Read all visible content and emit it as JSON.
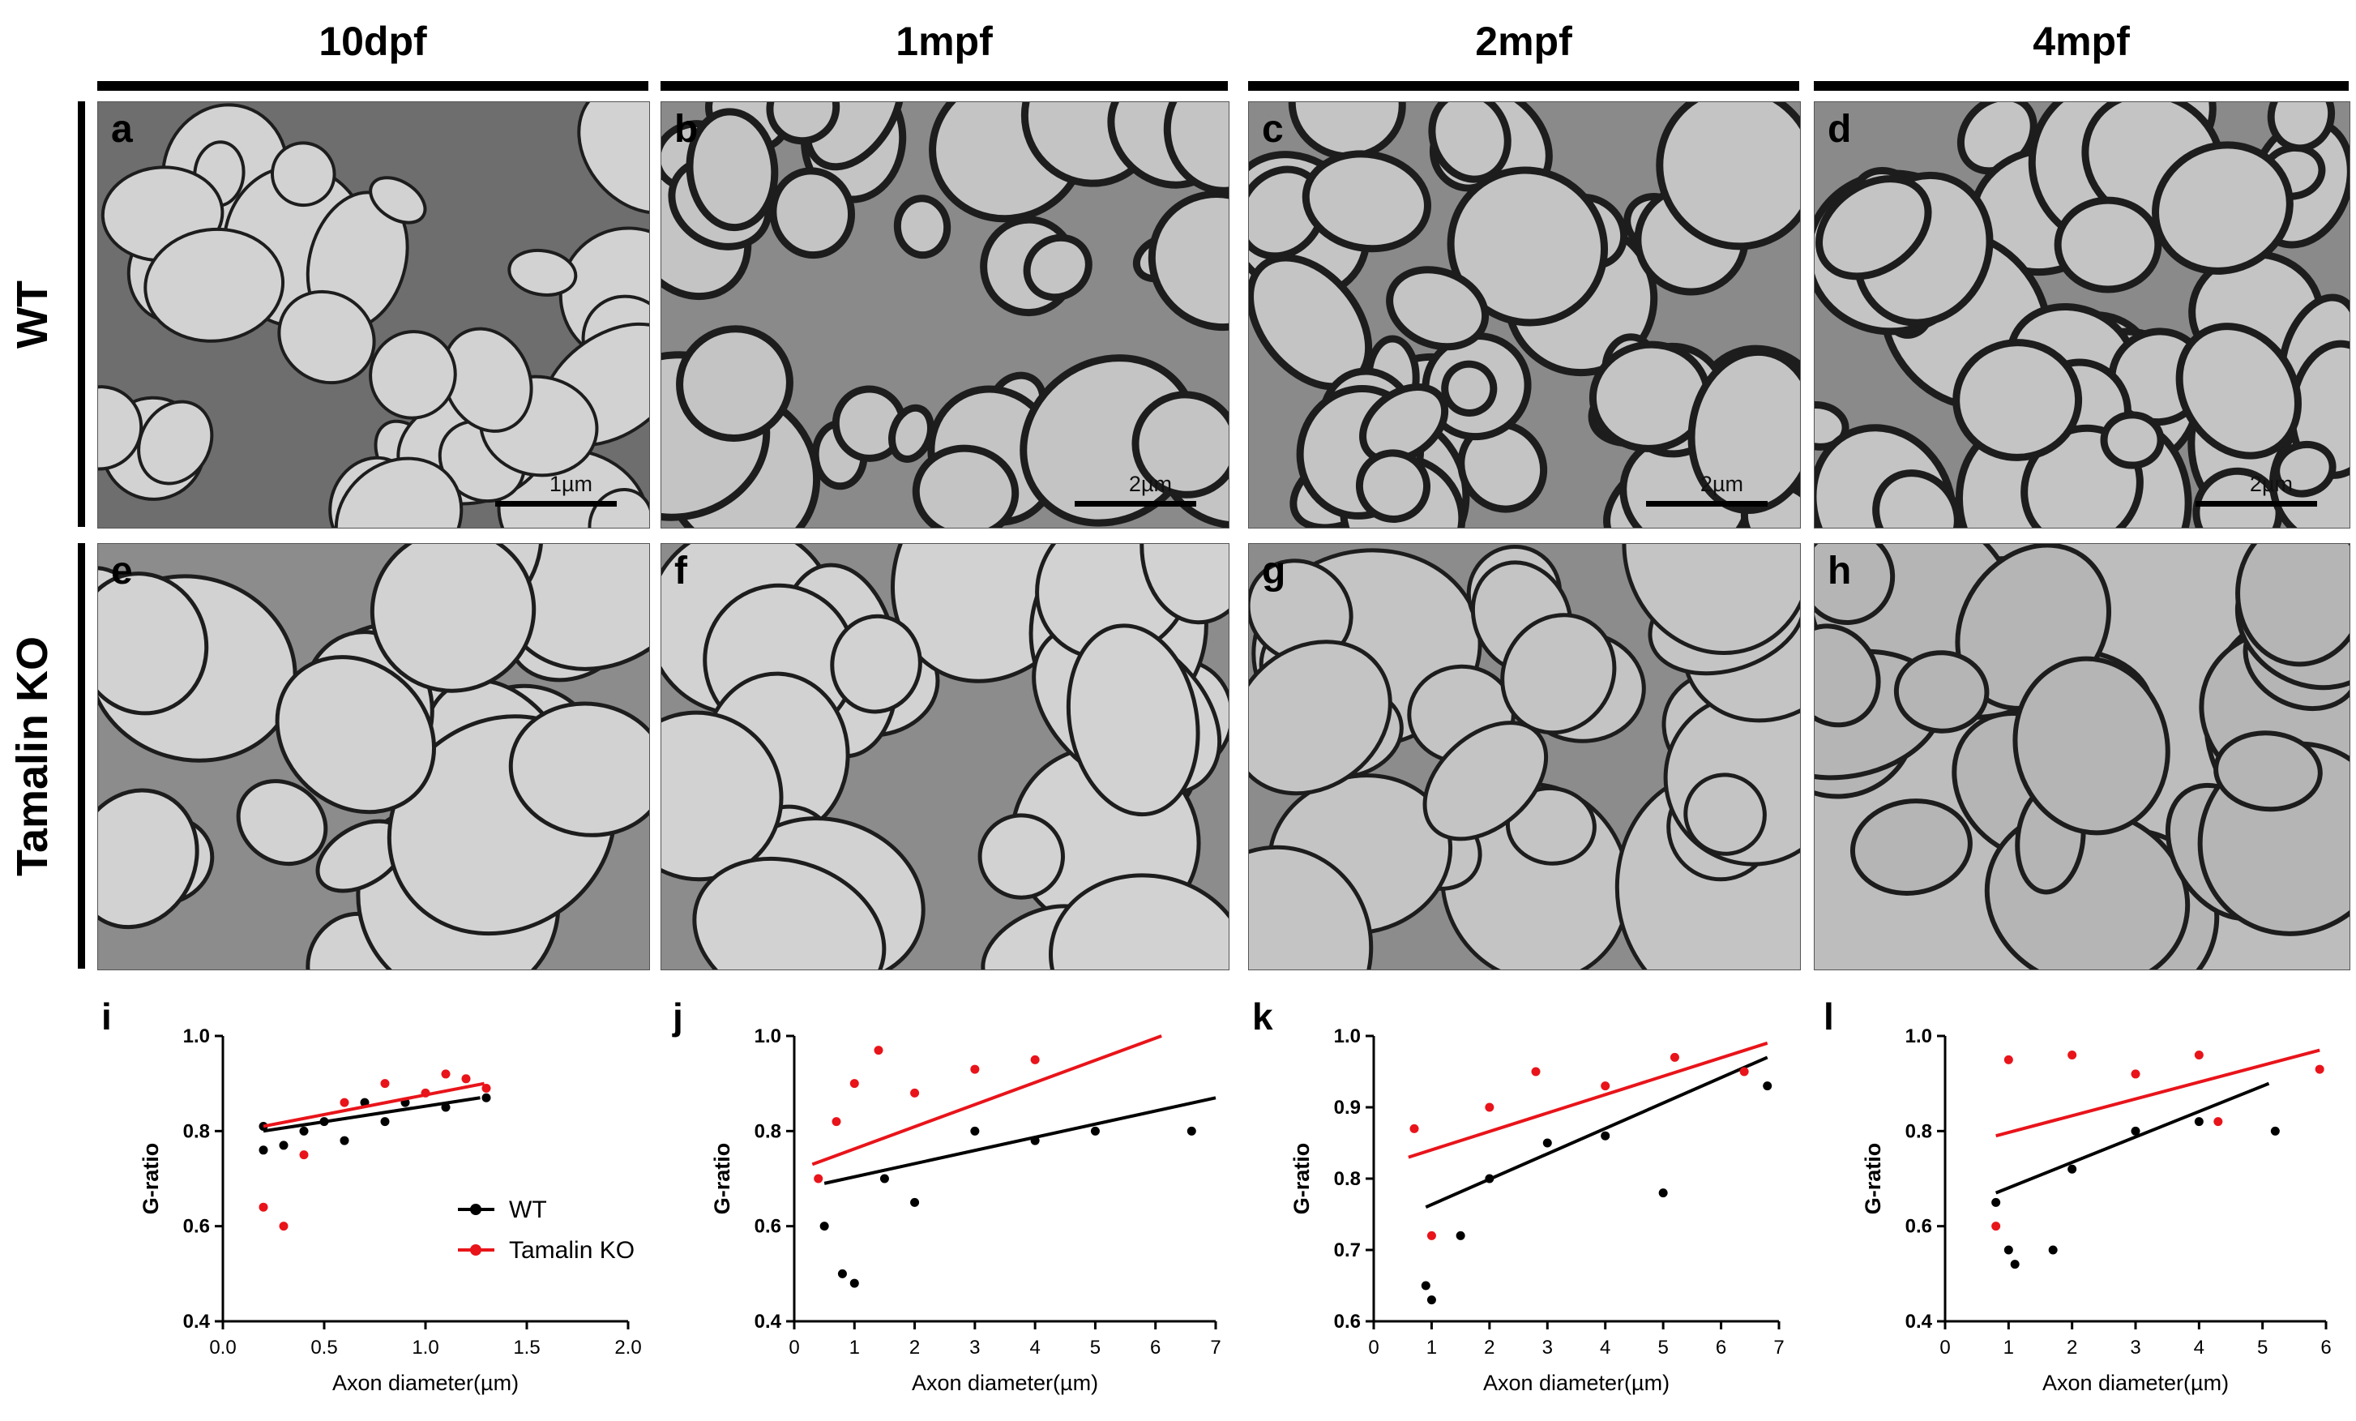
{
  "column_titles": [
    "10dpf",
    "1mpf",
    "2mpf",
    "4mpf"
  ],
  "row_labels": {
    "wt": "WT",
    "ko": "Tamalin KO"
  },
  "em_panels": [
    {
      "letter": "a",
      "scale": "1µm"
    },
    {
      "letter": "b",
      "scale": "2µm"
    },
    {
      "letter": "c",
      "scale": "2µm"
    },
    {
      "letter": "d",
      "scale": "2µm"
    },
    {
      "letter": "e",
      "scale": ""
    },
    {
      "letter": "f",
      "scale": ""
    },
    {
      "letter": "g",
      "scale": ""
    },
    {
      "letter": "h",
      "scale": ""
    }
  ],
  "legend": {
    "wt": "WT",
    "ko": "Tamalin KO"
  },
  "colors": {
    "wt": "#000000",
    "ko": "#e8141a",
    "membrane": "#1d1d1d",
    "tissue": "#8e8e8e",
    "axoplasm": "#c6c6c6"
  },
  "chart_data": [
    {
      "type": "scatter",
      "panel": "i",
      "xlabel": "Axon diameter(µm)",
      "ylabel": "G-ratio",
      "xlim": [
        0.0,
        2.0
      ],
      "ylim": [
        0.4,
        1.0
      ],
      "xticks": [
        "0.0",
        "0.5",
        "1.0",
        "1.5",
        "2.0"
      ],
      "yticks": [
        "0.4",
        "0.6",
        "0.8",
        "1.0"
      ],
      "series": [
        {
          "name": "WT",
          "fit": [
            [
              0.2,
              0.8
            ],
            [
              1.27,
              0.87
            ]
          ],
          "points": [
            [
              0.2,
              0.76
            ],
            [
              0.2,
              0.81
            ],
            [
              0.3,
              0.77
            ],
            [
              0.4,
              0.8
            ],
            [
              0.5,
              0.82
            ],
            [
              0.6,
              0.78
            ],
            [
              0.7,
              0.86
            ],
            [
              0.8,
              0.82
            ],
            [
              0.9,
              0.86
            ],
            [
              1.1,
              0.85
            ],
            [
              1.3,
              0.87
            ]
          ]
        },
        {
          "name": "Tamalin KO",
          "fit": [
            [
              0.2,
              0.81
            ],
            [
              1.29,
              0.9
            ]
          ],
          "points": [
            [
              0.2,
              0.64
            ],
            [
              0.3,
              0.6
            ],
            [
              0.4,
              0.75
            ],
            [
              0.6,
              0.86
            ],
            [
              0.8,
              0.9
            ],
            [
              1.0,
              0.88
            ],
            [
              1.1,
              0.92
            ],
            [
              1.2,
              0.91
            ],
            [
              1.3,
              0.89
            ]
          ]
        }
      ]
    },
    {
      "type": "scatter",
      "panel": "j",
      "xlabel": "Axon diameter(µm)",
      "ylabel": "G-ratio",
      "xlim": [
        0,
        7
      ],
      "ylim": [
        0.4,
        1.0
      ],
      "xticks": [
        "0",
        "1",
        "2",
        "3",
        "4",
        "5",
        "6",
        "7"
      ],
      "yticks": [
        "0.4",
        "0.6",
        "0.8",
        "1.0"
      ],
      "series": [
        {
          "name": "WT",
          "fit": [
            [
              0.5,
              0.69
            ],
            [
              7.0,
              0.87
            ]
          ],
          "points": [
            [
              0.5,
              0.6
            ],
            [
              0.8,
              0.5
            ],
            [
              1.0,
              0.48
            ],
            [
              1.5,
              0.7
            ],
            [
              2.0,
              0.65
            ],
            [
              3.0,
              0.8
            ],
            [
              4.0,
              0.78
            ],
            [
              5.0,
              0.8
            ],
            [
              6.6,
              0.8
            ]
          ]
        },
        {
          "name": "Tamalin KO",
          "fit": [
            [
              0.3,
              0.73
            ],
            [
              6.1,
              1.0
            ]
          ],
          "points": [
            [
              0.4,
              0.7
            ],
            [
              0.7,
              0.82
            ],
            [
              1.0,
              0.9
            ],
            [
              1.4,
              0.97
            ],
            [
              2.0,
              0.88
            ],
            [
              3.0,
              0.93
            ],
            [
              4.0,
              0.95
            ]
          ]
        }
      ]
    },
    {
      "type": "scatter",
      "panel": "k",
      "xlabel": "Axon diameter(µm)",
      "ylabel": "G-ratio",
      "xlim": [
        0,
        7
      ],
      "ylim": [
        0.6,
        1.0
      ],
      "xticks": [
        "0",
        "1",
        "2",
        "3",
        "4",
        "5",
        "6",
        "7"
      ],
      "yticks": [
        "0.6",
        "0.7",
        "0.8",
        "0.9",
        "1.0"
      ],
      "series": [
        {
          "name": "WT",
          "fit": [
            [
              0.9,
              0.76
            ],
            [
              6.8,
              0.97
            ]
          ],
          "points": [
            [
              0.9,
              0.65
            ],
            [
              1.0,
              0.63
            ],
            [
              1.5,
              0.72
            ],
            [
              2.0,
              0.8
            ],
            [
              3.0,
              0.85
            ],
            [
              4.0,
              0.86
            ],
            [
              5.0,
              0.78
            ],
            [
              6.8,
              0.93
            ]
          ]
        },
        {
          "name": "Tamalin KO",
          "fit": [
            [
              0.6,
              0.83
            ],
            [
              6.8,
              0.99
            ]
          ],
          "points": [
            [
              0.7,
              0.87
            ],
            [
              1.0,
              0.72
            ],
            [
              2.0,
              0.9
            ],
            [
              2.8,
              0.95
            ],
            [
              4.0,
              0.93
            ],
            [
              5.2,
              0.97
            ],
            [
              6.4,
              0.95
            ]
          ]
        }
      ]
    },
    {
      "type": "scatter",
      "panel": "l",
      "xlabel": "Axon diameter(µm)",
      "ylabel": "G-ratio",
      "xlim": [
        0,
        6
      ],
      "ylim": [
        0.4,
        1.0
      ],
      "xticks": [
        "0",
        "1",
        "2",
        "3",
        "4",
        "5",
        "6"
      ],
      "yticks": [
        "0.4",
        "0.6",
        "0.8",
        "1.0"
      ],
      "series": [
        {
          "name": "WT",
          "fit": [
            [
              0.8,
              0.67
            ],
            [
              5.1,
              0.9
            ]
          ],
          "points": [
            [
              0.8,
              0.65
            ],
            [
              1.0,
              0.55
            ],
            [
              1.1,
              0.52
            ],
            [
              1.7,
              0.55
            ],
            [
              2.0,
              0.72
            ],
            [
              3.0,
              0.8
            ],
            [
              4.0,
              0.82
            ],
            [
              5.2,
              0.8
            ]
          ]
        },
        {
          "name": "Tamalin KO",
          "fit": [
            [
              0.8,
              0.79
            ],
            [
              5.9,
              0.97
            ]
          ],
          "points": [
            [
              0.8,
              0.6
            ],
            [
              1.0,
              0.95
            ],
            [
              2.0,
              0.96
            ],
            [
              3.0,
              0.92
            ],
            [
              4.0,
              0.96
            ],
            [
              4.3,
              0.82
            ],
            [
              5.9,
              0.93
            ]
          ]
        }
      ]
    }
  ]
}
